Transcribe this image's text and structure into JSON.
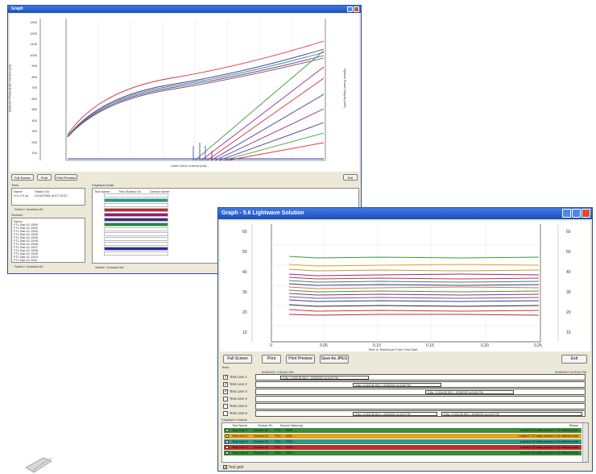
{
  "small_window": {
    "title": "Graph",
    "buttons": [
      "Full Screen",
      "Print",
      "Print Preview",
      "Exit"
    ],
    "axis_label_x": "Laser Drive Current (mA)",
    "axis_label_left": "Detector Photodiode Current (uA)",
    "axis_label_right": "Optical Power Output (mW)",
    "y_ticks": [
      "1300",
      "1200",
      "1100",
      "1000",
      "900",
      "800",
      "700",
      "600",
      "500",
      "400",
      "300",
      "200",
      "100",
      "0"
    ],
    "x_ticks": [
      "0.000",
      "10.000",
      "20.000",
      "30.000",
      "40.000",
      "50.000",
      "60.000",
      "70.000",
      "80.000"
    ],
    "tests_header": "Tests",
    "tests_columns": [
      "Name",
      "Tested On"
    ],
    "tests_first_row": [
      "LIV-1-0 us",
      "12/18/2006 at 07:23:22"
    ],
    "select_unselect": "Select / Unselect All",
    "devices_header": "Devices",
    "devices_column": "Name",
    "devices": [
      "FTL Bar-01 1500",
      "FTL Bar-01 1501",
      "FTL Bar-01 1502",
      "FTL Bar-01 1503",
      "FTL Bar-01 1504",
      "FTL Bar-01 1505",
      "FTL Bar-01 1506",
      "FTL Bar-01 1507",
      "FTL Bar-01 1508",
      "FTL Bar-01 1509",
      "FTL Bar-01 1510",
      "FTL Bar-01 1511"
    ],
    "displayed_header": "Displayed Data",
    "displayed_columns": [
      "Test Name",
      "Test Started On",
      "Device Name"
    ],
    "displayed_colors": [
      "#ffffff",
      "#1f9a8a",
      "#ffffff",
      "#c0272d",
      "#9b1a70",
      "#3a2a8a",
      "#1f8a3a",
      "#ffffff",
      "#ffffff",
      "#ffffff",
      "#ffffff",
      "#2a2a9a",
      "#ffffff"
    ]
  },
  "main_window": {
    "title": "Graph - 5.6 Lightwave Solution",
    "buttons": {
      "full_screen": "Full Screen",
      "print": "Print",
      "print_preview": "Print Preview",
      "save_jpeg": "Save As JPEG",
      "exit": "Exit"
    },
    "x_axis_label": "Time in Test/Hours From Test Start",
    "x_ticks": [
      "0",
      "0.05",
      "0.10",
      "0.15",
      "0.20",
      "0.25"
    ],
    "left_ticks": [
      "60",
      "50",
      "40",
      "30",
      "20",
      "10"
    ],
    "right_ticks": [
      "60",
      "50",
      "40",
      "30",
      "20",
      "10"
    ],
    "tests_label": "Tests",
    "time_start": "5/28/2007 4:56:54 PM",
    "time_end": "5/28/2007 6:09:54 PM",
    "test_rows": [
      {
        "label": "Test Line 1",
        "checked": true,
        "bars": [
          "3.8a - 0.02A (B 25C) - 5/28/2007 at 5:34 PM"
        ]
      },
      {
        "label": "Test Line 2",
        "checked": true,
        "bars": [
          "3.8a - 0.02A (B 25C) - 5/28/2007 at 5:38 PM"
        ]
      },
      {
        "label": "Test Line 3",
        "checked": true,
        "bars": [
          "3.8a - 0.02A (B 25C) - 5/28/2007 at 5:45 PM"
        ]
      },
      {
        "label": "Test Line 4",
        "checked": false,
        "bars": []
      },
      {
        "label": "Test Line 5",
        "checked": false,
        "bars": []
      },
      {
        "label": "Test Line 6",
        "checked": false,
        "bars": [
          "3.8a - 0.02A (B 25C) - 5/28/2007 at 5:52 PM",
          "3.8a - 0.02A (B 25C) - 5/28/2007 at 6:00 PM"
        ]
      }
    ],
    "displayed_label": "Displayed Graphs",
    "displayed_columns": [
      "Test Name",
      "Device Pn",
      "Device Name(s)",
      "Status"
    ],
    "displayed_rows": [
      {
        "name": "Test Line 1",
        "pn": "Device #1",
        "devices": "PD1 ... 9000 ...",
        "status": "Loaded 19 data points in 19 milliseconds",
        "color": "#3a8a3a"
      },
      {
        "name": "Test Line 2",
        "pn": "Device #1",
        "devices": "PD1 ... 9000 ...",
        "status": "Loaded 172 data points in 16 milliseconds",
        "color": "#e8a020"
      },
      {
        "name": "Test Line 3",
        "pn": "Device #1",
        "devices": "PD1 ... 9000 ...",
        "status": "Loaded 19 data points in 16 milliseconds",
        "color": "#2a9a8a"
      },
      {
        "name": "Test Line 4",
        "pn": "Device #1",
        "devices": "PD1 ... 9000 ...",
        "status": "Loaded 19 data points in 16 milliseconds",
        "color": "#b83028"
      },
      {
        "name": "Test Line 5",
        "pn": "Device #1",
        "devices": "PD1 ... 9000 ...",
        "status": "Loaded 19 data points in 16 milliseconds",
        "color": "#3a8a3a"
      }
    ],
    "test_grid": "Test grid"
  },
  "colors": {
    "title_blue": "#1e4fb8",
    "window_bg": "#ece9d8"
  }
}
